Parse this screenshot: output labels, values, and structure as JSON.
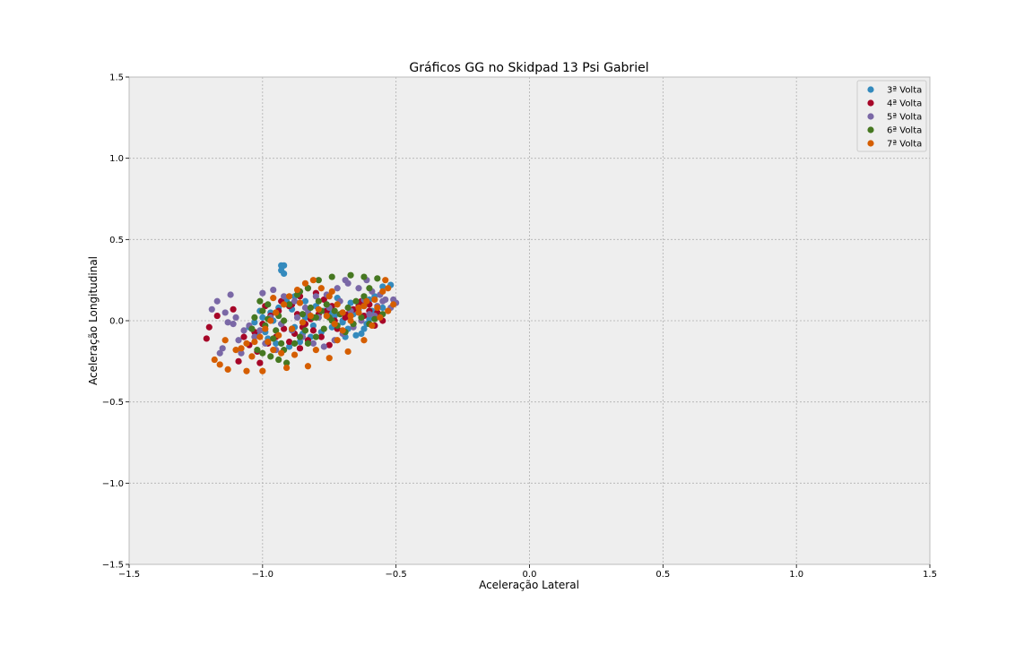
{
  "chart_data": {
    "type": "scatter",
    "title": "Gráficos GG no Skidpad 13 Psi Gabriel",
    "xlabel": "Aceleração Lateral",
    "ylabel": "Aceleração Longitudinal",
    "xlim": [
      -1.5,
      1.5
    ],
    "ylim": [
      -1.5,
      1.5
    ],
    "xticks": [
      -1.5,
      -1.0,
      -0.5,
      0.0,
      0.5,
      1.0,
      1.5
    ],
    "yticks": [
      -1.5,
      -1.0,
      -0.5,
      0.0,
      0.5,
      1.0,
      1.5
    ],
    "xtick_labels": [
      "−1.5",
      "−1.0",
      "−0.5",
      "0.0",
      "0.5",
      "1.0",
      "1.5"
    ],
    "ytick_labels": [
      "−1.5",
      "−1.0",
      "−0.5",
      "0.0",
      "0.5",
      "1.0",
      "1.5"
    ],
    "grid": true,
    "legend_position": "top-right",
    "series": [
      {
        "name": "3ª Volta",
        "color": "#348abd",
        "points": [
          [
            -0.93,
            0.34
          ],
          [
            -0.92,
            0.34
          ],
          [
            -0.93,
            0.31
          ],
          [
            -0.92,
            0.29
          ],
          [
            -0.52,
            0.22
          ],
          [
            -0.55,
            0.21
          ],
          [
            -0.58,
            0.15
          ],
          [
            -0.6,
            0.13
          ],
          [
            -0.62,
            0.09
          ],
          [
            -0.59,
            0.06
          ],
          [
            -0.6,
            0.01
          ],
          [
            -0.62,
            -0.05
          ],
          [
            -0.65,
            -0.09
          ],
          [
            -0.63,
            -0.08
          ],
          [
            -0.68,
            -0.05
          ],
          [
            -0.7,
            -0.01
          ],
          [
            -0.73,
            0.03
          ],
          [
            -0.77,
            0.06
          ],
          [
            -0.8,
            0.09
          ],
          [
            -0.84,
            0.12
          ],
          [
            -0.88,
            0.15
          ],
          [
            -0.91,
            0.12
          ],
          [
            -0.94,
            0.08
          ],
          [
            -0.97,
            0.05
          ],
          [
            -1.0,
            0.02
          ],
          [
            -1.03,
            -0.01
          ],
          [
            -1.05,
            -0.04
          ],
          [
            -1.02,
            -0.08
          ],
          [
            -0.98,
            -0.11
          ],
          [
            -0.95,
            -0.14
          ],
          [
            -0.9,
            -0.16
          ],
          [
            -0.86,
            -0.13
          ],
          [
            -0.82,
            -0.1
          ],
          [
            -0.78,
            -0.07
          ],
          [
            -0.74,
            -0.04
          ],
          [
            -0.7,
            0.0
          ],
          [
            -0.66,
            0.04
          ],
          [
            -0.64,
            0.07
          ],
          [
            -0.96,
            0.0
          ],
          [
            -0.88,
            -0.04
          ],
          [
            -0.84,
            0.02
          ],
          [
            -0.76,
            0.1
          ],
          [
            -0.72,
            0.14
          ],
          [
            -0.69,
            -0.1
          ],
          [
            -0.57,
            0.03
          ],
          [
            -0.55,
            0.08
          ],
          [
            -0.61,
            -0.02
          ],
          [
            -0.99,
            -0.07
          ],
          [
            -0.93,
            -0.02
          ],
          [
            -0.81,
            -0.03
          ],
          [
            -0.75,
            0.05
          ],
          [
            -0.67,
            0.11
          ],
          [
            -0.63,
            0.02
          ],
          [
            -1.01,
            0.06
          ],
          [
            -0.89,
            0.07
          ],
          [
            -0.85,
            -0.08
          ]
        ]
      },
      {
        "name": "4ª Volta",
        "color": "#a60628",
        "points": [
          [
            -1.21,
            -0.11
          ],
          [
            -1.2,
            -0.04
          ],
          [
            -1.17,
            0.03
          ],
          [
            -1.11,
            0.07
          ],
          [
            -1.09,
            -0.25
          ],
          [
            -1.01,
            -0.26
          ],
          [
            -1.05,
            -0.15
          ],
          [
            -1.03,
            -0.07
          ],
          [
            -1.0,
            -0.02
          ],
          [
            -0.97,
            0.03
          ],
          [
            -0.94,
            0.06
          ],
          [
            -0.9,
            0.09
          ],
          [
            -0.87,
            0.04
          ],
          [
            -0.84,
            -0.02
          ],
          [
            -0.81,
            -0.06
          ],
          [
            -0.78,
            -0.1
          ],
          [
            -0.75,
            -0.15
          ],
          [
            -0.72,
            -0.05
          ],
          [
            -0.69,
            0.02
          ],
          [
            -0.66,
            0.07
          ],
          [
            -0.63,
            0.12
          ],
          [
            -0.6,
            0.1
          ],
          [
            -0.57,
            0.05
          ],
          [
            -0.55,
            0.0
          ],
          [
            -0.58,
            -0.03
          ],
          [
            -0.62,
            0.03
          ],
          [
            -0.66,
            -0.02
          ],
          [
            -0.7,
            0.05
          ],
          [
            -0.74,
            0.09
          ],
          [
            -0.77,
            0.13
          ],
          [
            -0.8,
            0.17
          ],
          [
            -0.83,
            0.2
          ],
          [
            -0.86,
            0.15
          ],
          [
            -0.89,
            0.1
          ],
          [
            -0.92,
            -0.05
          ],
          [
            -0.95,
            -0.1
          ],
          [
            -0.98,
            -0.14
          ],
          [
            -1.02,
            -0.19
          ],
          [
            -0.88,
            -0.08
          ],
          [
            -0.85,
            -0.04
          ],
          [
            -0.82,
            0.01
          ],
          [
            -0.79,
            0.04
          ],
          [
            -0.76,
            0.06
          ],
          [
            -0.73,
            0.0
          ],
          [
            -0.9,
            -0.13
          ],
          [
            -0.86,
            -0.17
          ],
          [
            -0.83,
            -0.12
          ],
          [
            -0.68,
            0.04
          ],
          [
            -0.64,
            0.09
          ],
          [
            -0.6,
            0.06
          ],
          [
            -1.07,
            -0.1
          ],
          [
            -0.99,
            0.09
          ],
          [
            -0.93,
            0.12
          ]
        ]
      },
      {
        "name": "5ª Volta",
        "color": "#7a68a6",
        "points": [
          [
            -1.19,
            0.07
          ],
          [
            -1.17,
            0.12
          ],
          [
            -1.12,
            0.16
          ],
          [
            -1.14,
            0.05
          ],
          [
            -1.11,
            -0.02
          ],
          [
            -1.1,
            0.02
          ],
          [
            -1.07,
            -0.06
          ],
          [
            -1.05,
            -0.03
          ],
          [
            -1.09,
            -0.12
          ],
          [
            -1.15,
            -0.17
          ],
          [
            -1.16,
            -0.2
          ],
          [
            -1.08,
            -0.2
          ],
          [
            -1.0,
            0.17
          ],
          [
            -0.96,
            0.19
          ],
          [
            -0.92,
            0.15
          ],
          [
            -0.88,
            0.12
          ],
          [
            -0.84,
            0.08
          ],
          [
            -0.8,
            0.15
          ],
          [
            -0.76,
            0.16
          ],
          [
            -0.72,
            0.2
          ],
          [
            -0.69,
            0.25
          ],
          [
            -0.68,
            0.23
          ],
          [
            -0.64,
            0.2
          ],
          [
            -0.61,
            0.25
          ],
          [
            -0.59,
            0.18
          ],
          [
            -0.56,
            0.16
          ],
          [
            -0.54,
            0.13
          ],
          [
            -0.51,
            0.13
          ],
          [
            -0.5,
            0.11
          ],
          [
            -0.52,
            0.08
          ],
          [
            -0.55,
            0.12
          ],
          [
            -0.57,
            0.09
          ],
          [
            -0.6,
            0.04
          ],
          [
            -0.63,
            0.0
          ],
          [
            -0.66,
            -0.04
          ],
          [
            -0.7,
            -0.08
          ],
          [
            -0.73,
            -0.12
          ],
          [
            -0.77,
            -0.16
          ],
          [
            -0.81,
            -0.14
          ],
          [
            -0.85,
            -0.1
          ],
          [
            -0.89,
            -0.06
          ],
          [
            -0.93,
            -0.02
          ],
          [
            -0.97,
            0.02
          ],
          [
            -1.01,
            -0.06
          ],
          [
            -1.03,
            -0.1
          ],
          [
            -0.99,
            -0.14
          ],
          [
            -0.95,
            -0.18
          ],
          [
            -0.83,
            0.05
          ],
          [
            -0.79,
            0.02
          ],
          [
            -0.75,
            0.08
          ],
          [
            -0.71,
            0.12
          ],
          [
            -0.67,
            0.06
          ],
          [
            -0.62,
            0.13
          ],
          [
            -0.58,
            0.03
          ],
          [
            -1.13,
            -0.01
          ],
          [
            -0.87,
            0.02
          ]
        ]
      },
      {
        "name": "6ª Volta",
        "color": "#467821",
        "points": [
          [
            -1.04,
            -0.05
          ],
          [
            -1.02,
            -0.18
          ],
          [
            -1.0,
            -0.2
          ],
          [
            -0.97,
            -0.22
          ],
          [
            -0.94,
            -0.24
          ],
          [
            -0.91,
            -0.26
          ],
          [
            -0.93,
            -0.14
          ],
          [
            -0.95,
            -0.06
          ],
          [
            -0.98,
            0.01
          ],
          [
            -1.0,
            0.06
          ],
          [
            -1.01,
            0.12
          ],
          [
            -0.98,
            0.1
          ],
          [
            -0.95,
            0.05
          ],
          [
            -0.92,
            0.0
          ],
          [
            -0.89,
            -0.05
          ],
          [
            -0.86,
            -0.1
          ],
          [
            -0.83,
            -0.14
          ],
          [
            -0.8,
            -0.1
          ],
          [
            -0.77,
            -0.05
          ],
          [
            -0.74,
            0.0
          ],
          [
            -0.71,
            0.04
          ],
          [
            -0.68,
            0.08
          ],
          [
            -0.65,
            0.12
          ],
          [
            -0.62,
            0.15
          ],
          [
            -0.6,
            0.2
          ],
          [
            -0.57,
            0.26
          ],
          [
            -0.62,
            0.27
          ],
          [
            -0.67,
            0.28
          ],
          [
            -0.74,
            0.27
          ],
          [
            -0.79,
            0.25
          ],
          [
            -0.83,
            0.2
          ],
          [
            -0.87,
            0.16
          ],
          [
            -0.9,
            0.1
          ],
          [
            -0.85,
            0.04
          ],
          [
            -0.81,
            0.02
          ],
          [
            -0.78,
            0.06
          ],
          [
            -0.75,
            0.02
          ],
          [
            -0.72,
            -0.03
          ],
          [
            -0.69,
            -0.07
          ],
          [
            -0.66,
            -0.02
          ],
          [
            -0.63,
            0.02
          ],
          [
            -0.6,
            -0.02
          ],
          [
            -0.58,
            0.01
          ],
          [
            -0.55,
            0.04
          ],
          [
            -0.96,
            -0.11
          ],
          [
            -0.92,
            -0.18
          ],
          [
            -0.88,
            -0.14
          ],
          [
            -0.84,
            -0.06
          ],
          [
            -0.82,
            0.08
          ],
          [
            -0.79,
            0.12
          ],
          [
            -0.76,
            0.1
          ],
          [
            -0.73,
            0.06
          ],
          [
            -1.03,
            0.02
          ],
          [
            -0.99,
            -0.03
          ],
          [
            -0.94,
            0.03
          ],
          [
            -0.86,
            0.18
          ],
          [
            -0.8,
            0.02
          ]
        ]
      },
      {
        "name": "7ª Volta",
        "color": "#d55e00",
        "points": [
          [
            -1.18,
            -0.24
          ],
          [
            -1.16,
            -0.27
          ],
          [
            -1.13,
            -0.3
          ],
          [
            -1.06,
            -0.31
          ],
          [
            -1.0,
            -0.31
          ],
          [
            -1.14,
            -0.12
          ],
          [
            -1.08,
            -0.17
          ],
          [
            -1.06,
            -0.14
          ],
          [
            -1.03,
            -0.13
          ],
          [
            -1.01,
            -0.1
          ],
          [
            -0.99,
            -0.05
          ],
          [
            -0.97,
            0.0
          ],
          [
            -0.95,
            0.05
          ],
          [
            -0.92,
            0.1
          ],
          [
            -0.9,
            0.15
          ],
          [
            -0.87,
            0.19
          ],
          [
            -0.84,
            0.23
          ],
          [
            -0.81,
            0.25
          ],
          [
            -0.78,
            0.2
          ],
          [
            -0.75,
            0.15
          ],
          [
            -0.72,
            0.1
          ],
          [
            -0.7,
            0.05
          ],
          [
            -0.67,
            0.0
          ],
          [
            -0.64,
            0.05
          ],
          [
            -0.62,
            0.09
          ],
          [
            -0.58,
            0.13
          ],
          [
            -0.55,
            0.18
          ],
          [
            -0.53,
            0.2
          ],
          [
            -0.51,
            0.1
          ],
          [
            -0.53,
            0.06
          ],
          [
            -0.56,
            0.02
          ],
          [
            -0.59,
            -0.03
          ],
          [
            -0.62,
            -0.12
          ],
          [
            -0.68,
            -0.19
          ],
          [
            -0.72,
            -0.12
          ],
          [
            -0.75,
            -0.23
          ],
          [
            -0.8,
            -0.18
          ],
          [
            -0.83,
            -0.28
          ],
          [
            -0.88,
            -0.21
          ],
          [
            -0.91,
            -0.29
          ],
          [
            -0.93,
            -0.2
          ],
          [
            -0.96,
            -0.18
          ],
          [
            -0.98,
            -0.13
          ],
          [
            -0.94,
            -0.09
          ],
          [
            -0.89,
            -0.05
          ],
          [
            -0.85,
            -0.01
          ],
          [
            -0.82,
            0.03
          ],
          [
            -0.79,
            0.07
          ],
          [
            -0.76,
            0.03
          ],
          [
            -0.73,
            -0.02
          ],
          [
            -0.7,
            -0.06
          ],
          [
            -0.67,
            0.03
          ],
          [
            -0.64,
            0.08
          ],
          [
            -0.61,
            0.12
          ],
          [
            -0.57,
            0.08
          ],
          [
            -1.04,
            -0.22
          ],
          [
            -0.96,
            0.14
          ],
          [
            -0.86,
            0.11
          ],
          [
            -0.74,
            0.18
          ],
          [
            -0.54,
            0.25
          ],
          [
            -1.1,
            -0.18
          ]
        ]
      }
    ]
  }
}
